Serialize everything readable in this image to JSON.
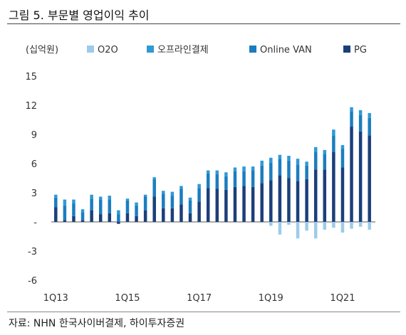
{
  "title": "그림 5. 부문별 영업이익 추이",
  "source": "자료: NHN 한국사이버결제, 하이투자증권",
  "colors": {
    "O2O": "#9DCBEA",
    "오프라인결제": "#2E9AD6",
    "Online VAN": "#1B7DBF",
    "PG": "#1B3F7A"
  },
  "chart_data": {
    "type": "bar",
    "stacked": true,
    "unit_label": "(십억원)",
    "y_ticks": [
      "15",
      "12",
      "9",
      "6",
      "3",
      "-",
      "-3",
      "-6"
    ],
    "ylim": [
      -6,
      15
    ],
    "x_tick_labels": [
      "1Q13",
      "1Q15",
      "1Q17",
      "1Q19",
      "1Q21"
    ],
    "categories": [
      "1Q13",
      "2Q13",
      "3Q13",
      "4Q13",
      "1Q14",
      "2Q14",
      "3Q14",
      "4Q14",
      "1Q15",
      "2Q15",
      "3Q15",
      "4Q15",
      "1Q16",
      "2Q16",
      "3Q16",
      "4Q16",
      "1Q17",
      "2Q17",
      "3Q17",
      "4Q17",
      "1Q18",
      "2Q18",
      "3Q18",
      "4Q18",
      "1Q19",
      "2Q19",
      "3Q19",
      "4Q19",
      "1Q20",
      "2Q20",
      "3Q20",
      "4Q20",
      "1Q21",
      "2Q21",
      "3Q21",
      "4Q21"
    ],
    "legend_position": "top",
    "series": [
      {
        "name": "O2O",
        "values": [
          0,
          0,
          0,
          0,
          0,
          0,
          0,
          0,
          0,
          0,
          0,
          0,
          0,
          0,
          0,
          0,
          0,
          0,
          0,
          0,
          0,
          0,
          0,
          0,
          -0.4,
          -1.3,
          -0.3,
          -1.7,
          -0.9,
          -1.7,
          -0.8,
          -0.6,
          -1.1,
          -0.7,
          -0.5,
          -0.8
        ]
      },
      {
        "name": "오프라인결제",
        "values": [
          0.3,
          0.6,
          0.4,
          0.3,
          0.4,
          0.3,
          0.4,
          0.4,
          0.2,
          0.3,
          0.2,
          0.2,
          0.3,
          0.4,
          0.3,
          0.3,
          0.4,
          0.3,
          0.4,
          0.4,
          0.4,
          0.5,
          0.4,
          0.5,
          0.5,
          0.4,
          0.5,
          0.6,
          0.4,
          0.5,
          0.4,
          0.6,
          0.4,
          0.4,
          0.5,
          0.5
        ]
      },
      {
        "name": "Online VAN",
        "values": [
          1.0,
          1.5,
          1.3,
          0.8,
          1.2,
          1.5,
          1.4,
          0.8,
          1.3,
          1.1,
          1.4,
          1.8,
          1.5,
          1.3,
          1.6,
          1.3,
          1.4,
          1.5,
          1.5,
          1.4,
          1.6,
          1.5,
          1.7,
          1.8,
          1.8,
          1.7,
          1.8,
          1.7,
          1.4,
          1.8,
          1.6,
          1.7,
          1.9,
          1.6,
          1.7,
          1.8
        ]
      },
      {
        "name": "PG",
        "values": [
          1.5,
          0.2,
          0.6,
          0.2,
          1.2,
          0.8,
          0.9,
          -0.2,
          0.9,
          0.6,
          1.2,
          2.6,
          1.4,
          1.4,
          1.8,
          0.9,
          2.1,
          3.5,
          3.4,
          3.3,
          3.6,
          3.7,
          3.6,
          4.0,
          4.3,
          4.8,
          4.5,
          4.2,
          4.4,
          5.4,
          5.4,
          7.2,
          5.6,
          9.8,
          9.3,
          8.9
        ]
      }
    ]
  }
}
